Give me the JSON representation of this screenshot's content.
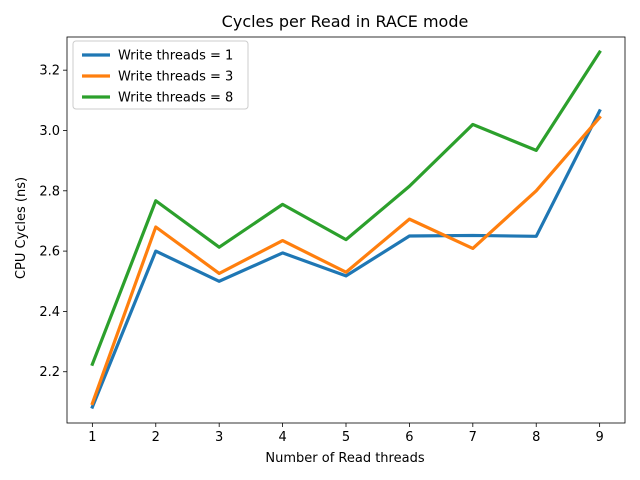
{
  "chart_data": {
    "type": "line",
    "title": "Cycles per Read in RACE mode",
    "xlabel": "Number of Read threads",
    "ylabel": "CPU Cycles (ns)",
    "x": [
      1,
      2,
      3,
      4,
      5,
      6,
      7,
      8,
      9
    ],
    "x_ticks": [
      "1",
      "2",
      "3",
      "4",
      "5",
      "6",
      "7",
      "8",
      "9"
    ],
    "y_ticks": [
      "2.2",
      "2.4",
      "2.6",
      "2.8",
      "3.0",
      "3.2"
    ],
    "xlim": [
      0.6,
      9.4
    ],
    "ylim": [
      2.03,
      3.31
    ],
    "grid": false,
    "legend_position": "top-left",
    "series": [
      {
        "name": "Write threads = 1",
        "color": "#1f77b4",
        "values": [
          2.083,
          2.6,
          2.5,
          2.594,
          2.518,
          2.65,
          2.652,
          2.649,
          3.065
        ]
      },
      {
        "name": "Write threads = 3",
        "color": "#ff7f0e",
        "values": [
          2.095,
          2.68,
          2.526,
          2.635,
          2.53,
          2.706,
          2.609,
          2.8,
          3.043
        ]
      },
      {
        "name": "Write threads = 8",
        "color": "#2ca02c",
        "values": [
          2.225,
          2.767,
          2.613,
          2.755,
          2.638,
          2.815,
          3.02,
          2.934,
          3.26
        ]
      }
    ]
  }
}
